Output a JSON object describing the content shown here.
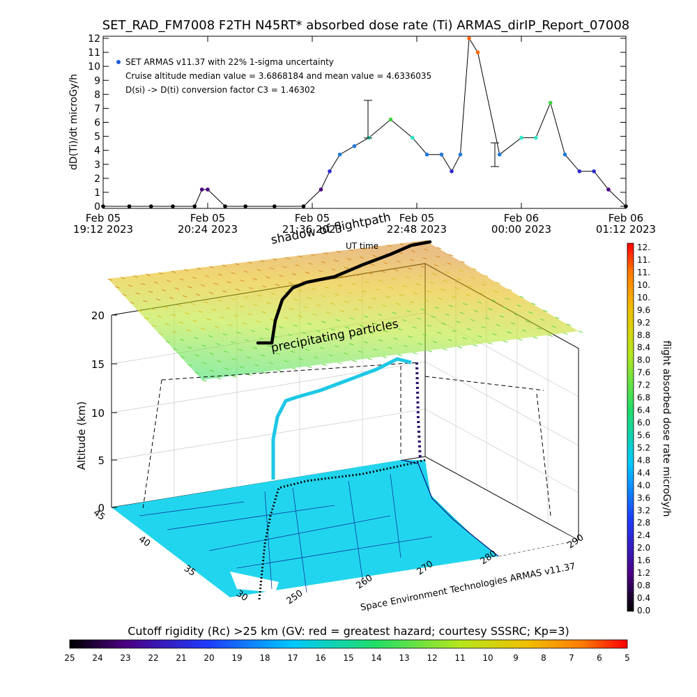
{
  "title": "SET_RAD_FM7008  F2TH N45RT* absorbed dose rate (Ti) ARMAS_dirIP_Report_07008",
  "chart_data": [
    {
      "type": "scatter",
      "ylabel": "dD(Ti)/dt microGy/h",
      "ylim": [
        0,
        12
      ],
      "y_ticks": [
        "0",
        "1",
        "2",
        "3",
        "4",
        "5",
        "6",
        "7",
        "8",
        "9",
        "10",
        "11",
        "12"
      ],
      "x_ticks": [
        {
          "line1": "Feb 05",
          "line2": "19:12 2023"
        },
        {
          "line1": "Feb 05",
          "line2": "20:24 2023"
        },
        {
          "line1": "Feb 05",
          "line2": "21:36 2023"
        },
        {
          "line1": "Feb 05",
          "line2": "22:48 2023"
        },
        {
          "line1": "Feb 06",
          "line2": "00:00 2023"
        },
        {
          "line1": "Feb 06",
          "line2": "01:12 2023"
        }
      ],
      "legend": {
        "series": "SET ARMAS v11.37 with 22% 1-sigma uncertainty",
        "line2": "Cruise altitude median value = 3.6868184 and mean value = 4.6336035",
        "line3": "D(si) -> D(ti) conversion factor C3 = 1.46302"
      },
      "series": [
        {
          "x": [
            "19:12",
            "19:30",
            "19:45",
            "20:00",
            "20:15",
            "20:20",
            "20:24",
            "20:36",
            "20:50",
            "21:10",
            "21:30",
            "21:42",
            "21:48",
            "21:55",
            "22:05",
            "22:15",
            "22:30",
            "22:45",
            "22:55",
            "23:05",
            "23:12",
            "23:18",
            "23:24",
            "23:30",
            "23:45",
            "00:00",
            "00:10",
            "00:20",
            "00:30",
            "00:40",
            "00:50",
            "01:00",
            "01:12"
          ],
          "y": [
            0,
            0,
            0,
            0,
            0,
            1.2,
            1.2,
            0,
            0,
            0,
            0,
            1.2,
            2.5,
            3.7,
            4.3,
            4.9,
            6.2,
            4.9,
            3.7,
            3.7,
            2.5,
            3.7,
            12,
            11,
            3.7,
            4.9,
            4.9,
            7.4,
            3.7,
            2.5,
            2.5,
            1.2,
            0
          ]
        }
      ]
    },
    {
      "type": "scatter",
      "subtype": "3d-flight-path",
      "zlabel": "Altitude (km)",
      "z_ticks": [
        "0",
        "5",
        "10",
        "15",
        "20"
      ],
      "lat_ticks": [
        "45",
        "40",
        "35",
        "30"
      ],
      "lon_ticks": [
        "250",
        "260",
        "270",
        "280",
        "290"
      ],
      "annotations": {
        "shadow": "shadow of flightpath",
        "ut": "UT time",
        "particles": "precipitating particles",
        "credit": "Space Environment Technologies ARMAS v11.37"
      },
      "path_lon": [
        249,
        251,
        254,
        257,
        259,
        261,
        264,
        268,
        271,
        274
      ],
      "path_lat": [
        34,
        35,
        37,
        39,
        40,
        41,
        42,
        43,
        44,
        45
      ],
      "path_alt_km": [
        0,
        3,
        8,
        12,
        12.5,
        13,
        13.5,
        14,
        14.5,
        15
      ]
    }
  ],
  "colorbar_right": {
    "label": "flight absorbed dose rate microGy/h",
    "ticks": [
      "12.",
      "11.",
      "11.",
      "10.",
      "10.",
      "9.6",
      "9.2",
      "8.8",
      "8.4",
      "8.0",
      "7.6",
      "7.2",
      "6.8",
      "6.4",
      "6.0",
      "5.6",
      "5.2",
      "4.8",
      "4.4",
      "4.0",
      "3.6",
      "3.2",
      "2.8",
      "2.4",
      "2.0",
      "1.6",
      "1.2",
      "0.8",
      "0.4",
      "0.0"
    ]
  },
  "colorbar_bottom": {
    "label": "Cutoff rigidity (Rc) >25 km (GV: red = greatest hazard; courtesy SSSRC; Kp=3)",
    "ticks": [
      "25",
      "24",
      "23",
      "22",
      "21",
      "20",
      "19",
      "18",
      "17",
      "16",
      "15",
      "14",
      "13",
      "12",
      "11",
      "10",
      "9",
      "8",
      "7",
      "6",
      "5"
    ]
  }
}
